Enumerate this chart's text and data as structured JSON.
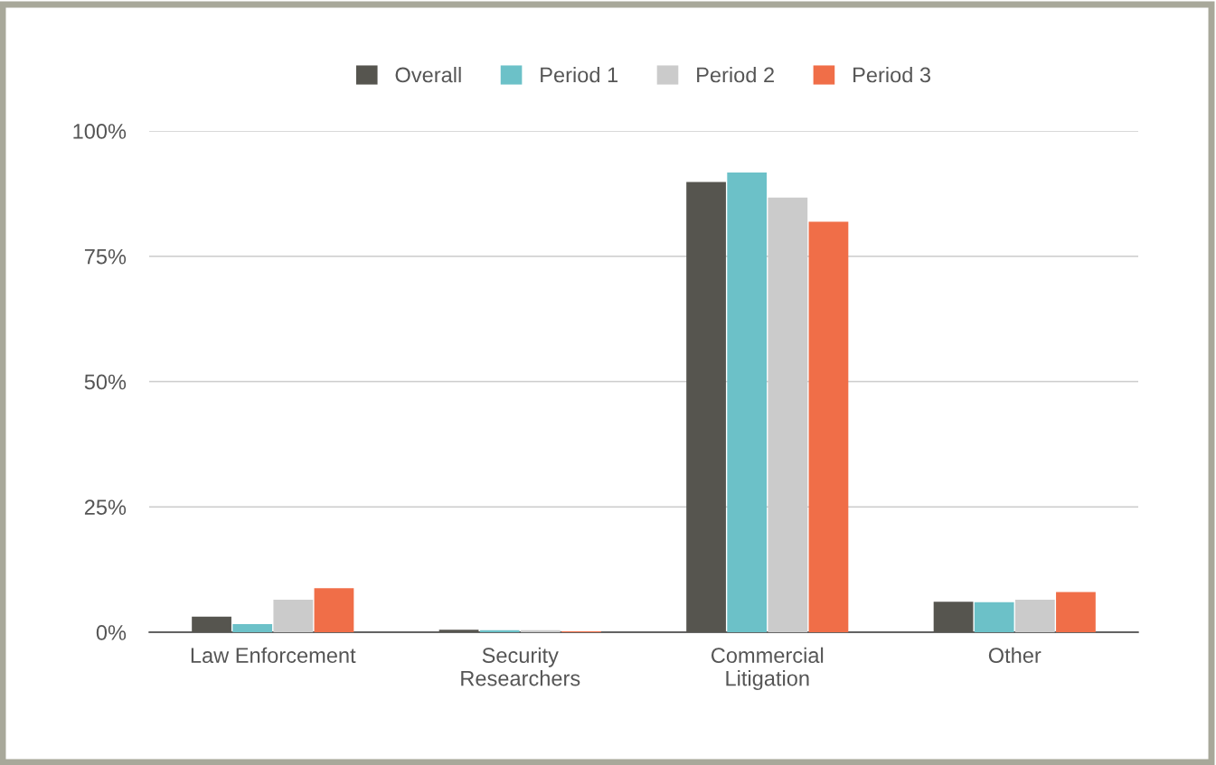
{
  "chart_data": {
    "type": "bar",
    "categories": [
      "Law Enforcement",
      "Security\nResearchers",
      "Commercial\nLitigation",
      "Other"
    ],
    "series": [
      {
        "name": "Overall",
        "color": "#56554f",
        "values": [
          3.1,
          0.5,
          89.8,
          6.1
        ]
      },
      {
        "name": "Period 1",
        "color": "#6cc1c8",
        "values": [
          1.6,
          0.4,
          91.7,
          6.0
        ]
      },
      {
        "name": "Period 2",
        "color": "#cbcbcb",
        "values": [
          6.5,
          0.4,
          86.7,
          6.5
        ]
      },
      {
        "name": "Period 3",
        "color": "#f06e48",
        "values": [
          8.8,
          0.2,
          81.9,
          8.0
        ]
      }
    ],
    "ylim": [
      0,
      100
    ],
    "yticks": [
      {
        "value": 0,
        "label": "0%"
      },
      {
        "value": 25,
        "label": "25%"
      },
      {
        "value": 50,
        "label": "50%"
      },
      {
        "value": 75,
        "label": "75%"
      },
      {
        "value": 100,
        "label": "100%"
      }
    ],
    "grid": "y",
    "legend": "top"
  }
}
